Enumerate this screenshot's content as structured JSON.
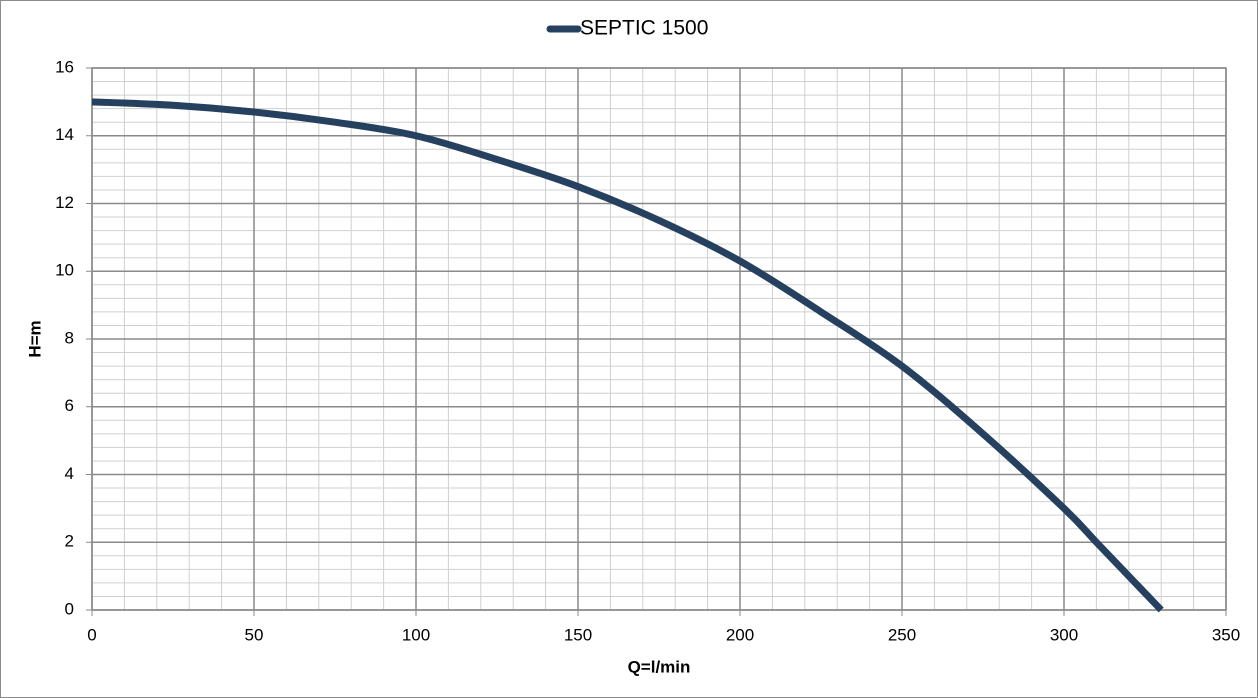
{
  "chart_data": {
    "type": "line",
    "x_label": "Q=l/min",
    "y_label": "H=m",
    "series": [
      {
        "name": "SEPTIC 1500",
        "color": "#26405f",
        "x": [
          0,
          25,
          50,
          75,
          100,
          125,
          150,
          175,
          200,
          225,
          250,
          275,
          300,
          310,
          320,
          330
        ],
        "values": [
          15,
          14.9,
          14.7,
          14.4,
          14,
          13.3,
          12.5,
          11.5,
          10.3,
          8.8,
          7.2,
          5.2,
          3,
          2,
          1,
          0
        ]
      }
    ],
    "xlim": [
      0,
      350
    ],
    "xticks": [
      0,
      50,
      100,
      150,
      200,
      250,
      300,
      350
    ],
    "ylim": [
      0,
      16
    ],
    "yticks": [
      0,
      2,
      4,
      6,
      8,
      10,
      12,
      14,
      16
    ],
    "grid": true,
    "minor_grid": {
      "x": 10,
      "y": 0.4
    },
    "legend": "top"
  }
}
